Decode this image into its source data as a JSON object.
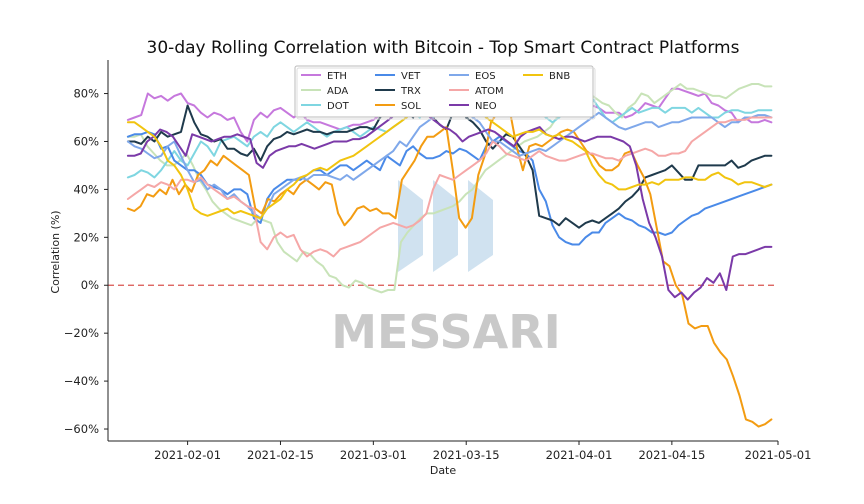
{
  "chart_data": {
    "type": "line",
    "title": "30-day Rolling Correlation with Bitcoin - Top Smart Contract Platforms",
    "xlabel": "Date",
    "ylabel": "Correlation (%)",
    "x_start": "2021-01-23",
    "x_end": "2021-04-30",
    "x_ticks": [
      "2021-02-01",
      "2021-02-15",
      "2021-03-01",
      "2021-03-15",
      "2021-04-01",
      "2021-04-15",
      "2021-05-01"
    ],
    "xlim": [
      "2021-01-20",
      "2021-05-01"
    ],
    "y_ticks": [
      80,
      60,
      40,
      20,
      0,
      -20,
      -40,
      -60
    ],
    "y_tick_labels": [
      "80%",
      "60%",
      "40%",
      "20%",
      "0%",
      "−20%",
      "−40%",
      "−60%"
    ],
    "ylim": [
      -65,
      94
    ],
    "zero_line": {
      "value": 0,
      "color": "#d9534f",
      "style": "dashed"
    },
    "legend_position": "top-center",
    "grid": false,
    "watermark": "MESSARI",
    "series": [
      {
        "name": "ETH",
        "color": "#c678dd",
        "values": [
          69,
          70,
          71,
          80,
          78,
          79,
          77,
          79,
          80,
          76,
          75,
          72,
          70,
          72,
          71,
          69,
          70,
          64,
          60,
          69,
          72,
          70,
          73,
          74,
          72,
          70,
          72,
          69,
          68,
          68,
          67,
          66,
          65,
          66,
          67,
          67,
          68,
          69,
          71,
          74,
          78,
          80,
          79,
          82,
          80,
          78,
          76,
          80,
          81,
          80,
          77,
          76,
          78,
          78,
          80,
          81,
          80,
          79,
          78,
          82,
          84,
          82,
          81,
          82,
          80,
          83,
          81,
          78,
          80,
          80,
          75,
          74,
          72,
          72,
          72,
          70,
          71,
          73,
          76,
          75,
          74,
          78,
          82,
          82,
          81,
          80,
          79,
          80,
          76,
          75,
          73,
          72,
          68,
          70,
          68,
          68,
          69,
          68
        ]
      },
      {
        "name": "ADA",
        "color": "#c8e3b8",
        "values": [
          62,
          62,
          63,
          58,
          55,
          52,
          50,
          50,
          52,
          55,
          50,
          44,
          40,
          35,
          32,
          30,
          28,
          27,
          26,
          25,
          28,
          27,
          26,
          18,
          14,
          12,
          10,
          14,
          13,
          10,
          8,
          4,
          3,
          0,
          -1,
          2,
          1,
          -1,
          -2,
          -3,
          -2,
          -2,
          18,
          22,
          25,
          28,
          30,
          30,
          31,
          32,
          33,
          35,
          38,
          40,
          44,
          48,
          50,
          52,
          54,
          56,
          58,
          60,
          61,
          62,
          64,
          66,
          70,
          74,
          78,
          80,
          81,
          80,
          78,
          76,
          75,
          72,
          70,
          74,
          76,
          80,
          79,
          76,
          78,
          80,
          82,
          84,
          82,
          82,
          81,
          80,
          79,
          79,
          78,
          80,
          82,
          83,
          84,
          84,
          83,
          83
        ]
      },
      {
        "name": "DOT",
        "color": "#7fd6e1",
        "values": [
          45,
          46,
          48,
          47,
          45,
          48,
          52,
          56,
          52,
          50,
          55,
          60,
          58,
          54,
          60,
          61,
          62,
          60,
          58,
          62,
          64,
          62,
          66,
          68,
          66,
          64,
          66,
          68,
          66,
          64,
          62,
          64,
          65,
          66,
          64,
          62,
          64,
          66,
          65,
          64,
          66,
          68,
          70,
          72,
          70,
          74,
          76,
          80,
          84,
          86,
          88,
          89,
          88,
          86,
          84,
          85,
          86,
          84,
          82,
          80,
          78,
          75,
          72,
          70,
          68,
          70,
          72,
          74,
          76,
          80,
          78,
          74,
          70,
          68,
          70,
          72,
          74,
          72,
          73,
          74,
          74,
          72,
          74,
          74,
          74,
          72,
          74,
          72,
          70,
          70,
          72,
          73,
          73,
          72,
          72,
          73,
          73,
          73
        ]
      },
      {
        "name": "VET",
        "color": "#4a8ae8",
        "values": [
          62,
          63,
          63,
          64,
          63,
          57,
          58,
          52,
          50,
          48,
          48,
          46,
          42,
          41,
          40,
          38,
          40,
          40,
          38,
          28,
          26,
          36,
          40,
          42,
          44,
          44,
          44,
          46,
          48,
          48,
          46,
          48,
          50,
          50,
          48,
          50,
          52,
          50,
          48,
          54,
          52,
          50,
          56,
          58,
          55,
          53,
          53,
          54,
          56,
          55,
          57,
          56,
          54,
          52,
          58,
          60,
          62,
          60,
          58,
          56,
          55,
          52,
          40,
          35,
          25,
          20,
          18,
          17,
          17,
          20,
          22,
          22,
          26,
          28,
          30,
          28,
          27,
          25,
          24,
          22,
          22,
          21,
          22,
          25,
          27,
          29,
          30,
          32,
          33,
          34,
          35,
          36,
          37,
          38,
          39,
          40,
          41,
          42
        ]
      },
      {
        "name": "TRX",
        "color": "#1f3a4c",
        "values": [
          60,
          60,
          59,
          62,
          60,
          64,
          62,
          63,
          64,
          75,
          68,
          63,
          62,
          60,
          61,
          57,
          57,
          55,
          54,
          57,
          52,
          58,
          61,
          62,
          64,
          63,
          64,
          65,
          64,
          64,
          63,
          64,
          64,
          64,
          65,
          66,
          66,
          65,
          70,
          72,
          74,
          76,
          72,
          70,
          75,
          80,
          70,
          67,
          65,
          72,
          74,
          70,
          68,
          65,
          60,
          57,
          60,
          63,
          62,
          58,
          54,
          48,
          29,
          28,
          27,
          25,
          28,
          26,
          24,
          26,
          27,
          26,
          28,
          30,
          32,
          35,
          37,
          40,
          45,
          46,
          47,
          48,
          50,
          47,
          44,
          44,
          50,
          50,
          50,
          50,
          50,
          52,
          49,
          50,
          52,
          53,
          54,
          54
        ]
      },
      {
        "name": "SOL",
        "color": "#f39c12",
        "values": [
          32,
          31,
          33,
          38,
          37,
          40,
          38,
          44,
          38,
          42,
          39,
          46,
          48,
          52,
          50,
          54,
          52,
          50,
          48,
          46,
          32,
          30,
          36,
          35,
          38,
          40,
          38,
          42,
          44,
          42,
          40,
          43,
          42,
          30,
          25,
          28,
          32,
          33,
          31,
          32,
          30,
          30,
          28,
          44,
          48,
          52,
          58,
          62,
          62,
          64,
          66,
          48,
          28,
          24,
          28,
          46,
          54,
          68,
          72,
          76,
          72,
          58,
          48,
          58,
          59,
          58,
          60,
          62,
          64,
          65,
          64,
          60,
          56,
          54,
          50,
          48,
          48,
          50,
          55,
          56,
          50,
          45,
          38,
          24,
          10,
          8,
          0,
          -4,
          -16,
          -18,
          -17,
          -17,
          -24,
          -28,
          -31,
          -38,
          -46,
          -56,
          -57,
          -59,
          -58,
          -56
        ]
      },
      {
        "name": "EOS",
        "color": "#7fa8ea",
        "values": [
          60,
          58,
          57,
          55,
          53,
          54,
          58,
          60,
          54,
          48,
          43,
          44,
          40,
          42,
          40,
          36,
          38,
          35,
          33,
          30,
          28,
          32,
          38,
          40,
          42,
          44,
          45,
          44,
          46,
          46,
          46,
          45,
          44,
          46,
          44,
          46,
          48,
          50,
          52,
          54,
          56,
          60,
          58,
          62,
          66,
          68,
          70,
          72,
          74,
          76,
          74,
          72,
          70,
          68,
          64,
          60,
          60,
          58,
          56,
          54,
          55,
          56,
          57,
          56,
          58,
          60,
          62,
          64,
          66,
          68,
          70,
          72,
          70,
          68,
          66,
          65,
          66,
          67,
          68,
          68,
          66,
          67,
          68,
          68,
          69,
          70,
          70,
          70,
          70,
          68,
          66,
          68,
          68,
          70,
          70,
          71,
          71,
          70
        ]
      },
      {
        "name": "ATOM",
        "color": "#f5a7a7",
        "values": [
          36,
          38,
          40,
          42,
          41,
          43,
          42,
          40,
          44,
          44,
          43,
          45,
          42,
          40,
          38,
          36,
          37,
          35,
          33,
          32,
          18,
          15,
          20,
          22,
          20,
          21,
          15,
          12,
          14,
          15,
          14,
          12,
          15,
          16,
          17,
          18,
          20,
          22,
          24,
          25,
          26,
          25,
          24,
          25,
          27,
          30,
          40,
          46,
          45,
          44,
          46,
          48,
          50,
          52,
          55,
          60,
          58,
          55,
          54,
          53,
          52,
          54,
          56,
          54,
          53,
          52,
          52,
          53,
          54,
          55,
          55,
          54,
          53,
          53,
          52,
          54,
          55,
          56,
          57,
          56,
          54,
          54,
          55,
          55,
          56,
          60,
          62,
          64,
          66,
          68,
          68,
          69,
          69,
          69,
          70,
          70,
          70,
          70
        ]
      },
      {
        "name": "NEO",
        "color": "#7b3aa8",
        "values": [
          54,
          54,
          55,
          60,
          62,
          65,
          64,
          62,
          58,
          54,
          63,
          62,
          61,
          60,
          61,
          62,
          62,
          63,
          62,
          61,
          51,
          49,
          54,
          56,
          57,
          58,
          58,
          59,
          58,
          57,
          58,
          59,
          60,
          60,
          60,
          61,
          61,
          62,
          64,
          66,
          68,
          70,
          72,
          74,
          76,
          80,
          72,
          70,
          68,
          66,
          65,
          63,
          60,
          62,
          63,
          64,
          65,
          64,
          62,
          60,
          58,
          62,
          64,
          65,
          66,
          63,
          62,
          61,
          62,
          62,
          61,
          60,
          61,
          62,
          62,
          62,
          61,
          60,
          58,
          50,
          36,
          26,
          20,
          12,
          -2,
          -5,
          -3,
          -6,
          -3,
          -1,
          3,
          1,
          5,
          -2,
          12,
          13,
          13,
          14,
          15,
          16,
          16
        ]
      },
      {
        "name": "BNB",
        "color": "#f1c40f",
        "values": [
          68,
          68,
          66,
          64,
          62,
          58,
          52,
          50,
          46,
          40,
          32,
          30,
          29,
          30,
          31,
          32,
          30,
          31,
          30,
          29,
          28,
          32,
          34,
          36,
          40,
          42,
          45,
          46,
          48,
          49,
          48,
          50,
          52,
          53,
          54,
          56,
          58,
          60,
          62,
          64,
          66,
          68,
          70,
          72,
          74,
          76,
          78,
          80,
          82,
          80,
          78,
          76,
          74,
          72,
          70,
          68,
          66,
          64,
          62,
          63,
          64,
          64,
          65,
          63,
          62,
          63,
          61,
          60,
          58,
          56,
          50,
          46,
          43,
          42,
          40,
          40,
          41,
          42,
          42,
          43,
          42,
          44,
          44,
          44,
          45,
          45,
          44,
          44,
          46,
          47,
          45,
          44,
          42,
          43,
          43,
          42,
          41,
          42
        ]
      }
    ]
  }
}
